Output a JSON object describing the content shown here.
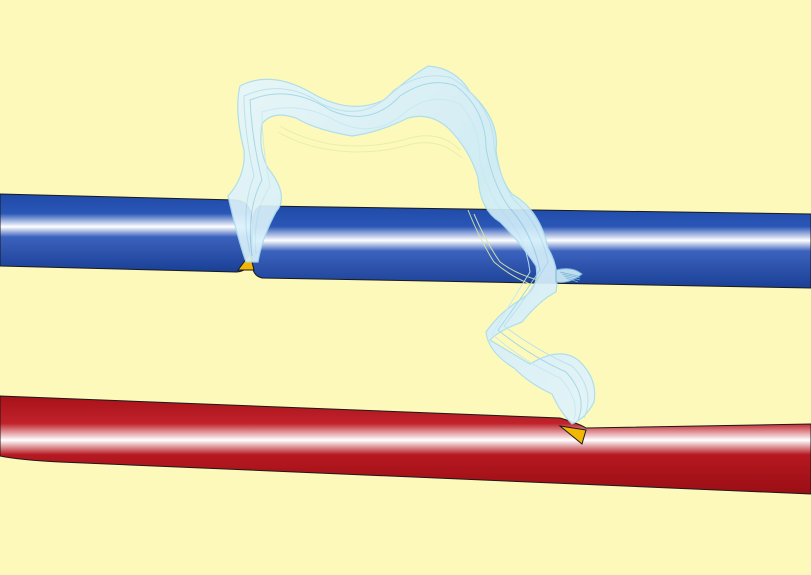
{
  "diagram": {
    "kind": "vessel-anastomosis-illustration",
    "colors": {
      "background": "#fdf9bb",
      "vein": "#1f4aa8",
      "vein_highlight": "#ffffff",
      "artery": "#b0141c",
      "artery_highlight": "#ffffff",
      "graft": "#d8f0fb",
      "graft_outline": "#a9dcef",
      "anastomosis": "#f2b705",
      "outline": "#1a1a1a"
    },
    "components": [
      {
        "id": "vein",
        "label": ""
      },
      {
        "id": "artery",
        "label": ""
      },
      {
        "id": "graft-loop",
        "label": ""
      },
      {
        "id": "venous-anastomosis",
        "label": ""
      },
      {
        "id": "arterial-anastomosis",
        "label": ""
      }
    ]
  }
}
